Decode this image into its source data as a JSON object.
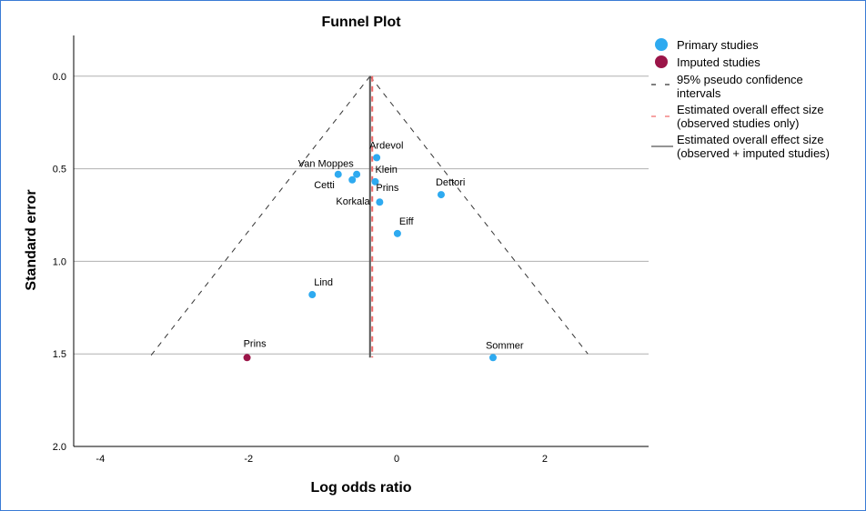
{
  "chart_data": {
    "type": "scatter",
    "title": "Funnel Plot",
    "xlabel": "Log odds ratio",
    "ylabel": "Standard error",
    "xlim": [
      -4.36,
      3.4
    ],
    "ylim": [
      2.0,
      -0.22
    ],
    "y_reversed": true,
    "xticks": [
      -4,
      -2,
      0,
      2
    ],
    "yticks": [
      0.0,
      0.5,
      1.0,
      1.5,
      2.0
    ],
    "ytick_labels": [
      "0.0",
      "0.5",
      "1.0",
      "1.5",
      "2.0"
    ],
    "grid": "horizontal",
    "legend_position": "right",
    "colors": {
      "primary": "#2eaaf0",
      "imputed": "#9b1548",
      "ci": "#333333",
      "observed_effect": "#f06a6a",
      "combined_effect": "#555555"
    },
    "legend": [
      {
        "key": "primary",
        "label": "Primary studies"
      },
      {
        "key": "imputed",
        "label": "Imputed studies"
      },
      {
        "key": "ci",
        "label": "95% pseudo confidence intervals"
      },
      {
        "key": "observed_effect",
        "label": "Estimated overall effect size (observed studies only)"
      },
      {
        "key": "combined_effect",
        "label": "Estimated overall effect size (observed + imputed studies)"
      }
    ],
    "series": [
      {
        "name": "Primary studies",
        "points": [
          {
            "label": "Ardevol",
            "x": -0.27,
            "y": 0.44
          },
          {
            "label": "Van Moppes",
            "x": -0.79,
            "y": 0.53
          },
          {
            "label": "Cetti",
            "x": -0.6,
            "y": 0.56
          },
          {
            "label": "",
            "x": -0.54,
            "y": 0.53
          },
          {
            "label": "Klein",
            "x": -0.29,
            "y": 0.57
          },
          {
            "label": "Korkala",
            "x": -0.23,
            "y": 0.68
          },
          {
            "label": "Prins",
            "x": -0.23,
            "y": 0.68
          },
          {
            "label": "Eiff",
            "x": 0.01,
            "y": 0.85
          },
          {
            "label": "Dettori",
            "x": 0.6,
            "y": 0.64
          },
          {
            "label": "Lind",
            "x": -1.14,
            "y": 1.18
          },
          {
            "label": "Sommer",
            "x": 1.3,
            "y": 1.52
          }
        ]
      },
      {
        "name": "Imputed studies",
        "points": [
          {
            "label": "Prins",
            "x": -2.02,
            "y": 1.52
          }
        ]
      }
    ],
    "combined_effect": -0.36,
    "observed_effect": -0.33,
    "funnel_max_se": 1.52
  }
}
